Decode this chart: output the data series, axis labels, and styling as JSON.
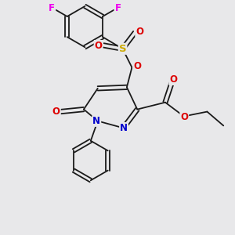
{
  "background_color": "#e8e8ea",
  "bond_color": "#1a1a1a",
  "atom_colors": {
    "F": "#ee00ee",
    "S": "#ccaa00",
    "O": "#dd0000",
    "N": "#0000cc",
    "C": "#1a1a1a"
  },
  "figsize": [
    3.0,
    3.0
  ],
  "dpi": 100
}
